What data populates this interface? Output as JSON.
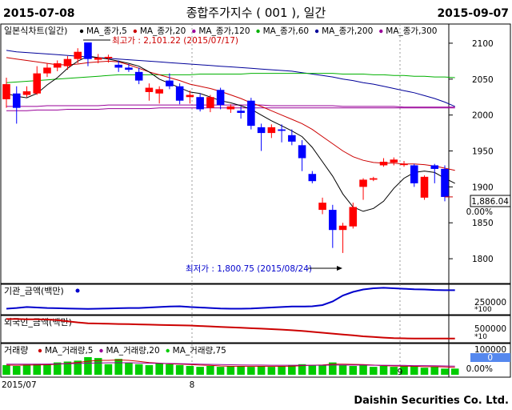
{
  "header": {
    "start_date": "2015-07-08",
    "end_date": "2015-09-07",
    "title": "종합주가지수 ( 001 ), 일간"
  },
  "footer": {
    "brand": "Daishin Securities Co. Ltd.",
    "x_tick_left": "2015/07",
    "x_tick_mid": "8",
    "x_tick_right": "9"
  },
  "colors": {
    "up": "#ff0000",
    "down": "#0000ff",
    "ma5": "#000000",
    "ma20": "#cc0000",
    "ma60": "#00b000",
    "ma120": "#990099",
    "ma200": "#000099",
    "ma300": "#990099",
    "vol_bar": "#00cc00"
  },
  "chart_data": [
    {
      "type": "candlestick",
      "legend": {
        "title": "일본식차트(일간)",
        "items": [
          "MA_종가,5",
          "MA_종가,20",
          "MA_종가,120",
          "MA_종가,60",
          "MA_종가,200",
          "MA_종가,300"
        ]
      },
      "y_ticks": [
        1800,
        1850,
        1900,
        1950,
        2000,
        2050,
        2100
      ],
      "ylim": [
        1770,
        2120
      ],
      "last_label": "1,886.04",
      "change_label": "0.00%",
      "annotations": {
        "high": "최고가 : 2,101.22 (2015/07/17)",
        "low": "최저가 : 1,800.75 (2015/08/24)"
      },
      "candles": [
        {
          "o": 2022,
          "h": 2052,
          "l": 2010,
          "c": 2043
        },
        {
          "o": 2030,
          "h": 2040,
          "l": 1988,
          "c": 2010
        },
        {
          "o": 2028,
          "h": 2040,
          "l": 2025,
          "c": 2033
        },
        {
          "o": 2030,
          "h": 2068,
          "l": 2028,
          "c": 2058
        },
        {
          "o": 2058,
          "h": 2072,
          "l": 2053,
          "c": 2066
        },
        {
          "o": 2066,
          "h": 2076,
          "l": 2061,
          "c": 2072
        },
        {
          "o": 2068,
          "h": 2082,
          "l": 2063,
          "c": 2078
        },
        {
          "o": 2078,
          "h": 2093,
          "l": 2072,
          "c": 2088
        },
        {
          "o": 2101,
          "h": 2101,
          "l": 2068,
          "c": 2078
        },
        {
          "o": 2077,
          "h": 2085,
          "l": 2072,
          "c": 2080
        },
        {
          "o": 2079,
          "h": 2084,
          "l": 2073,
          "c": 2081
        },
        {
          "o": 2070,
          "h": 2076,
          "l": 2060,
          "c": 2066
        },
        {
          "o": 2066,
          "h": 2071,
          "l": 2060,
          "c": 2063
        },
        {
          "o": 2060,
          "h": 2066,
          "l": 2043,
          "c": 2048
        },
        {
          "o": 2032,
          "h": 2044,
          "l": 2020,
          "c": 2038
        },
        {
          "o": 2030,
          "h": 2040,
          "l": 2016,
          "c": 2036
        },
        {
          "o": 2048,
          "h": 2058,
          "l": 2036,
          "c": 2040
        },
        {
          "o": 2040,
          "h": 2044,
          "l": 2015,
          "c": 2020
        },
        {
          "o": 2025,
          "h": 2034,
          "l": 2016,
          "c": 2028
        },
        {
          "o": 2025,
          "h": 2030,
          "l": 2005,
          "c": 2008
        },
        {
          "o": 2010,
          "h": 2028,
          "l": 2004,
          "c": 2025
        },
        {
          "o": 2035,
          "h": 2038,
          "l": 2008,
          "c": 2014
        },
        {
          "o": 2008,
          "h": 2015,
          "l": 2003,
          "c": 2012
        },
        {
          "o": 2006,
          "h": 2012,
          "l": 1995,
          "c": 2003
        },
        {
          "o": 2020,
          "h": 2024,
          "l": 1980,
          "c": 1985
        },
        {
          "o": 1983,
          "h": 1988,
          "l": 1950,
          "c": 1975
        },
        {
          "o": 1975,
          "h": 1987,
          "l": 1968,
          "c": 1983
        },
        {
          "o": 1980,
          "h": 1987,
          "l": 1962,
          "c": 1978
        },
        {
          "o": 1972,
          "h": 1980,
          "l": 1958,
          "c": 1963
        },
        {
          "o": 1958,
          "h": 1965,
          "l": 1922,
          "c": 1940
        },
        {
          "o": 1918,
          "h": 1922,
          "l": 1905,
          "c": 1908
        },
        {
          "o": 1868,
          "h": 1885,
          "l": 1862,
          "c": 1878
        },
        {
          "o": 1868,
          "h": 1875,
          "l": 1815,
          "c": 1840
        },
        {
          "o": 1840,
          "h": 1850,
          "l": 1808,
          "c": 1846
        },
        {
          "o": 1845,
          "h": 1878,
          "l": 1842,
          "c": 1872
        },
        {
          "o": 1900,
          "h": 1912,
          "l": 1882,
          "c": 1910
        },
        {
          "o": 1910,
          "h": 1914,
          "l": 1908,
          "c": 1912
        },
        {
          "o": 1930,
          "h": 1940,
          "l": 1928,
          "c": 1935
        },
        {
          "o": 1934,
          "h": 1941,
          "l": 1930,
          "c": 1938
        },
        {
          "o": 1932,
          "h": 1936,
          "l": 1928,
          "c": 1932
        },
        {
          "o": 1930,
          "h": 1932,
          "l": 1900,
          "c": 1905
        },
        {
          "o": 1885,
          "h": 1916,
          "l": 1882,
          "c": 1914
        },
        {
          "o": 1930,
          "h": 1932,
          "l": 1905,
          "c": 1925
        },
        {
          "o": 1925,
          "h": 1930,
          "l": 1880,
          "c": 1886
        }
      ],
      "ma5": [
        2030,
        2026,
        2024,
        2030,
        2042,
        2052,
        2065,
        2075,
        2082,
        2080,
        2078,
        2075,
        2072,
        2068,
        2060,
        2050,
        2044,
        2038,
        2032,
        2030,
        2025,
        2020,
        2017,
        2013,
        2008,
        2000,
        1992,
        1985,
        1978,
        1970,
        1955,
        1935,
        1915,
        1890,
        1872,
        1866,
        1870,
        1880,
        1898,
        1912,
        1920,
        1922,
        1920,
        1912,
        1905
      ],
      "ma20": [
        2080,
        2078,
        2076,
        2074,
        2072,
        2070,
        2070,
        2071,
        2073,
        2074,
        2075,
        2074,
        2070,
        2065,
        2060,
        2056,
        2052,
        2048,
        2043,
        2040,
        2037,
        2033,
        2028,
        2023,
        2017,
        2012,
        2006,
        2000,
        1994,
        1988,
        1980,
        1970,
        1960,
        1950,
        1942,
        1937,
        1934,
        1933,
        1933,
        1932,
        1932,
        1931,
        1929,
        1926,
        1923
      ],
      "ma60": [
        2045,
        2046,
        2047,
        2048,
        2049,
        2050,
        2051,
        2052,
        2053,
        2054,
        2055,
        2056,
        2056,
        2056,
        2056,
        2056,
        2056,
        2056,
        2056,
        2057,
        2057,
        2057,
        2057,
        2057,
        2058,
        2058,
        2058,
        2058,
        2058,
        2058,
        2058,
        2058,
        2058,
        2057,
        2057,
        2057,
        2056,
        2056,
        2055,
        2055,
        2054,
        2054,
        2053,
        2053,
        2052
      ],
      "ma120": [
        2012,
        2012,
        2012,
        2012,
        2013,
        2013,
        2013,
        2013,
        2013,
        2013,
        2014,
        2014,
        2014,
        2014,
        2014,
        2014,
        2014,
        2014,
        2014,
        2014,
        2014,
        2014,
        2014,
        2014,
        2014,
        2014,
        2013,
        2013,
        2013,
        2013,
        2013,
        2013,
        2013,
        2012,
        2012,
        2012,
        2012,
        2012,
        2012,
        2011,
        2011,
        2011,
        2011,
        2011,
        2011
      ],
      "ma200": [
        2090,
        2088,
        2087,
        2086,
        2085,
        2084,
        2083,
        2082,
        2081,
        2080,
        2079,
        2078,
        2077,
        2076,
        2075,
        2074,
        2073,
        2072,
        2071,
        2070,
        2069,
        2068,
        2067,
        2066,
        2065,
        2064,
        2063,
        2062,
        2061,
        2059,
        2057,
        2055,
        2053,
        2050,
        2048,
        2045,
        2043,
        2040,
        2037,
        2034,
        2031,
        2027,
        2023,
        2018,
        2012
      ],
      "ma300": [
        2006,
        2006,
        2006,
        2007,
        2007,
        2007,
        2008,
        2008,
        2008,
        2008,
        2009,
        2009,
        2009,
        2009,
        2009,
        2010,
        2010,
        2010,
        2010,
        2010,
        2010,
        2010,
        2010,
        2010,
        2010,
        2010,
        2010,
        2010,
        2010,
        2010,
        2010,
        2010,
        2010,
        2010,
        2010,
        2010,
        2010,
        2010,
        2010,
        2010,
        2010,
        2010,
        2010,
        2010,
        2010
      ]
    },
    {
      "type": "line",
      "title": "기관_금액(백만)",
      "unit_label": "*100",
      "y_tick": "250000",
      "values": [
        0.15,
        0.18,
        0.22,
        0.2,
        0.18,
        0.17,
        0.16,
        0.15,
        0.14,
        0.15,
        0.16,
        0.17,
        0.18,
        0.18,
        0.2,
        0.22,
        0.24,
        0.25,
        0.22,
        0.2,
        0.18,
        0.16,
        0.15,
        0.15,
        0.16,
        0.18,
        0.2,
        0.22,
        0.24,
        0.24,
        0.25,
        0.3,
        0.45,
        0.7,
        0.85,
        0.95,
        1.0,
        1.02,
        1.0,
        0.98,
        0.96,
        0.95,
        0.93,
        0.92,
        0.92
      ]
    },
    {
      "type": "line",
      "title": "외국인_금액(백만)",
      "unit_label": "*10",
      "y_tick": "500000",
      "values": [
        0.95,
        0.95,
        0.94,
        0.94,
        0.93,
        0.9,
        0.85,
        0.8,
        0.76,
        0.75,
        0.74,
        0.73,
        0.72,
        0.71,
        0.7,
        0.69,
        0.68,
        0.67,
        0.66,
        0.64,
        0.62,
        0.6,
        0.58,
        0.56,
        0.54,
        0.52,
        0.5,
        0.48,
        0.45,
        0.42,
        0.38,
        0.34,
        0.3,
        0.26,
        0.22,
        0.18,
        0.15,
        0.12,
        0.1,
        0.09,
        0.08,
        0.08,
        0.08,
        0.08,
        0.08
      ]
    },
    {
      "type": "bar",
      "title": "거래량",
      "legend_items": [
        "MA_거래량,5",
        "MA_거래량,20",
        "MA_거래량,75"
      ],
      "y_tick": "100000",
      "last_label": "0",
      "change_label": "0.00%",
      "values": [
        0.55,
        0.5,
        0.58,
        0.62,
        0.6,
        0.7,
        0.75,
        0.8,
        1.0,
        0.95,
        0.6,
        0.9,
        0.7,
        0.6,
        0.55,
        0.65,
        0.6,
        0.55,
        0.5,
        0.45,
        0.5,
        0.45,
        0.5,
        0.5,
        0.45,
        0.5,
        0.45,
        0.5,
        0.55,
        0.6,
        0.55,
        0.55,
        0.7,
        0.55,
        0.5,
        0.55,
        0.45,
        0.5,
        0.45,
        0.5,
        0.5,
        0.4,
        0.45,
        0.35,
        0.35
      ],
      "ma5": [
        0.55,
        0.54,
        0.55,
        0.56,
        0.57,
        0.6,
        0.65,
        0.7,
        0.77,
        0.82,
        0.82,
        0.84,
        0.82,
        0.76,
        0.69,
        0.66,
        0.62,
        0.6,
        0.58,
        0.55,
        0.53,
        0.5,
        0.48,
        0.48,
        0.48,
        0.48,
        0.48,
        0.48,
        0.49,
        0.52,
        0.54,
        0.56,
        0.6,
        0.6,
        0.59,
        0.58,
        0.55,
        0.52,
        0.5,
        0.49,
        0.48,
        0.46,
        0.46,
        0.44,
        0.42
      ],
      "ma20": [
        0.6,
        0.6,
        0.6,
        0.6,
        0.61,
        0.62,
        0.63,
        0.64,
        0.66,
        0.67,
        0.68,
        0.68,
        0.68,
        0.67,
        0.66,
        0.65,
        0.64,
        0.63,
        0.62,
        0.6,
        0.59,
        0.58,
        0.57,
        0.56,
        0.55,
        0.55,
        0.54,
        0.54,
        0.54,
        0.54,
        0.54,
        0.54,
        0.55,
        0.55,
        0.55,
        0.55,
        0.54,
        0.54,
        0.53,
        0.53,
        0.52,
        0.52,
        0.51,
        0.5,
        0.49
      ]
    }
  ]
}
